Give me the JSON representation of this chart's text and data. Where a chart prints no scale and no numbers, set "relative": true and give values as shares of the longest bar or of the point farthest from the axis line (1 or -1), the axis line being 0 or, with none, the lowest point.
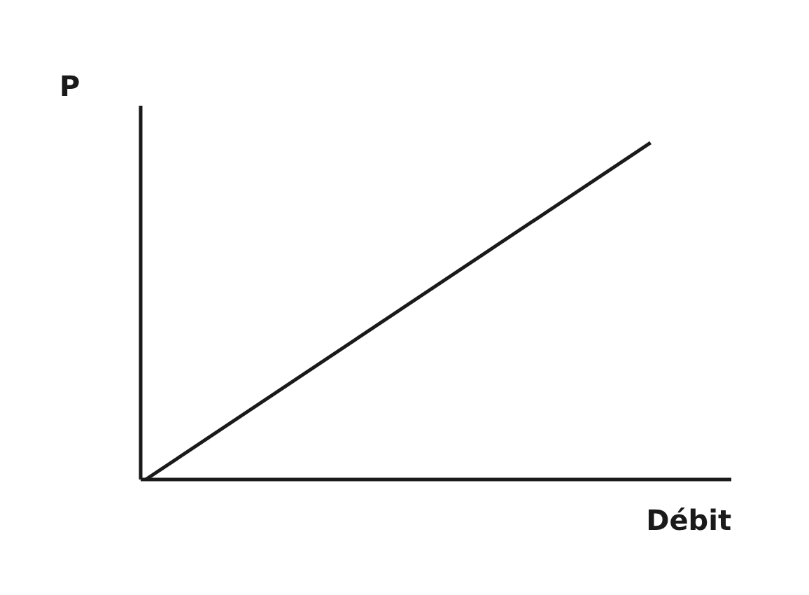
{
  "chart_data": {
    "type": "line",
    "relative": true,
    "xlabel": "Débit",
    "ylabel": "P",
    "categories": [
      null,
      null
    ],
    "series": [
      {
        "color": "#1a1a1a",
        "values": [
          0,
          1
        ]
      }
    ],
    "grid": false,
    "marker": "none",
    "line_style": "solid"
  }
}
